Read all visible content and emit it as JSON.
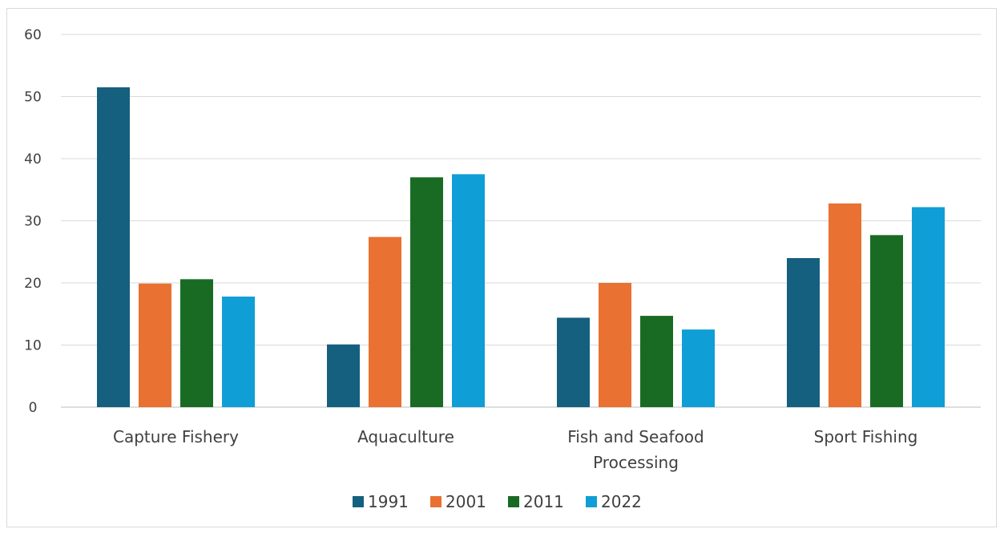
{
  "chart_data": {
    "type": "bar",
    "categories": [
      [
        "Capture Fishery"
      ],
      [
        "Aquaculture"
      ],
      [
        "Fish and Seafood",
        "Processing"
      ],
      [
        "Sport Fishing"
      ]
    ],
    "series": [
      {
        "name": "1991",
        "color": "#15607f",
        "values": [
          51.5,
          10.1,
          14.4,
          24.0
        ]
      },
      {
        "name": "2001",
        "color": "#e97132",
        "values": [
          19.9,
          27.4,
          20.0,
          32.8
        ]
      },
      {
        "name": "2011",
        "color": "#196b24",
        "values": [
          20.6,
          37.0,
          14.7,
          27.7
        ]
      },
      {
        "name": "2022",
        "color": "#0f9ed5",
        "values": [
          17.8,
          37.5,
          12.5,
          32.2
        ]
      }
    ],
    "ylim": [
      0,
      60
    ],
    "yticks": [
      0,
      10,
      20,
      30,
      40,
      50,
      60
    ],
    "grid": true,
    "legend": "bottom"
  }
}
